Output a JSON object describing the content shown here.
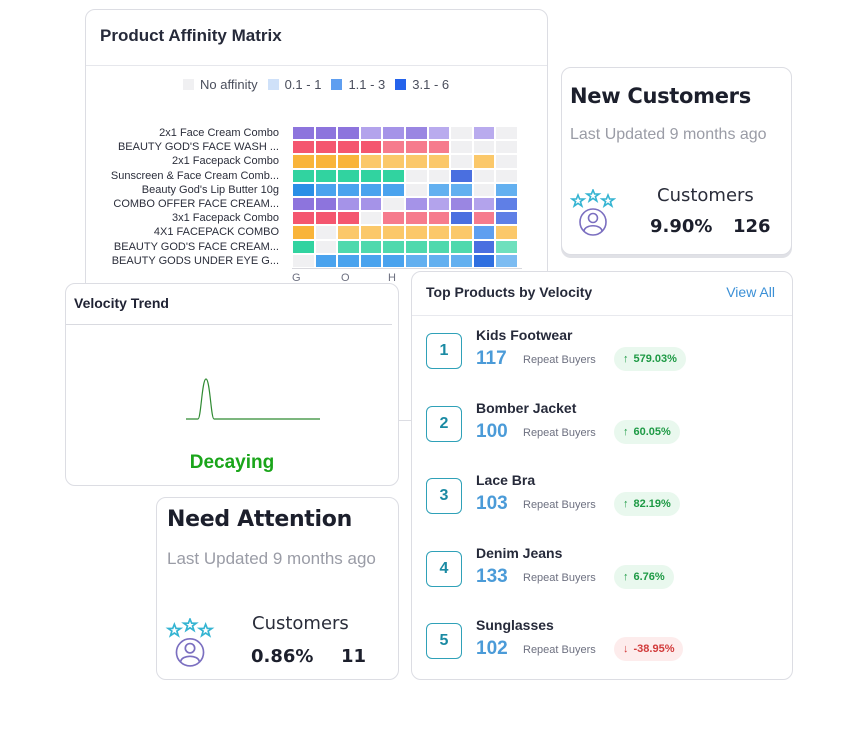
{
  "affinity": {
    "title": "Product Affinity Matrix",
    "legend": [
      {
        "label": "No affinity",
        "color": "#f0f0f2"
      },
      {
        "label": "0.1 - 1",
        "color": "#cfe1f9"
      },
      {
        "label": "1.1 - 3",
        "color": "#5e9ef0"
      },
      {
        "label": "3.1 - 6",
        "color": "#2563eb"
      }
    ],
    "rows": [
      "2x1 Face Cream Combo",
      "BEAUTY GOD'S FACE WASH ...",
      "2x1 Facepack Combo",
      "Sunscreen & Face Cream Comb...",
      "Beauty God's Lip Butter 10g",
      "COMBO OFFER FACE CREAM...",
      "3x1 Facepack Combo",
      "4X1 FACEPACK COMBO",
      "BEAUTY GOD'S FACE CREAM...",
      "BEAUTY GODS UNDER EYE G..."
    ],
    "x_ticks": [
      "G",
      "O",
      "H"
    ],
    "row_colors": [
      [
        "#8d74dd",
        "#8d74dd",
        "#8d74dd",
        "#b3a3ec",
        "#a593e8",
        "#9a86e2",
        "#b9abee",
        "#f0f0f2",
        "#b9abee",
        "#f0f0f2"
      ],
      [
        "#f4566f",
        "#f4566f",
        "#f4566f",
        "#f4566f",
        "#f67b8d",
        "#f67b8d",
        "#f67b8d",
        "#f0f0f2",
        "#f0f0f2",
        "#f0f0f2"
      ],
      [
        "#f9b43a",
        "#f9b43a",
        "#f9b43a",
        "#fbc86a",
        "#fbc86a",
        "#fbc86a",
        "#fbc86a",
        "#f0f0f2",
        "#fbc86a",
        "#f0f0f2"
      ],
      [
        "#31d3a0",
        "#31d3a0",
        "#31d3a0",
        "#31d3a0",
        "#31d3a0",
        "#f0f0f2",
        "#f0f0f2",
        "#4a6fe0",
        "#f0f0f2",
        "#f0f0f2"
      ],
      [
        "#2a8fe6",
        "#4aa3ee",
        "#4aa3ee",
        "#4aa3ee",
        "#4aa3ee",
        "#f0f0f2",
        "#63b0f0",
        "#63b0f0",
        "#f0f0f2",
        "#63b0f0"
      ],
      [
        "#8d74dd",
        "#8d74dd",
        "#a593e8",
        "#a593e8",
        "#f0f0f2",
        "#a593e8",
        "#b3a3ec",
        "#9a86e2",
        "#b3a3ec",
        "#5f7fe6"
      ],
      [
        "#f4566f",
        "#f4566f",
        "#f4566f",
        "#f0f0f2",
        "#f67b8d",
        "#f67b8d",
        "#f67b8d",
        "#4a6fe0",
        "#f67b8d",
        "#5f7fe6"
      ],
      [
        "#f9b43a",
        "#f0f0f2",
        "#fbc86a",
        "#fbc86a",
        "#fbc86a",
        "#fbc86a",
        "#fbc86a",
        "#fbc86a",
        "#5f9ff0",
        "#fbc86a"
      ],
      [
        "#31d3a0",
        "#f0f0f2",
        "#4fd9ad",
        "#4fd9ad",
        "#4fd9ad",
        "#4fd9ad",
        "#4fd9ad",
        "#4fd9ad",
        "#4a6fe0",
        "#6ee0bd"
      ],
      [
        "#f0f0f2",
        "#4aa3ee",
        "#4aa3ee",
        "#4aa3ee",
        "#4aa3ee",
        "#63b0f0",
        "#63b0f0",
        "#63b0f0",
        "#2f6fe0",
        "#7cbcf2"
      ]
    ]
  },
  "new_customers": {
    "title": "New Customers",
    "updated": "Last Updated 9 months ago",
    "label": "Customers",
    "percent": "9.90%",
    "count": "126"
  },
  "velocity": {
    "title": "Velocity Trend",
    "status": "Decaying",
    "status_color": "#1aa51a"
  },
  "need_attention": {
    "title": "Need Attention",
    "updated": "Last Updated 9 months ago",
    "label": "Customers",
    "percent": "0.86%",
    "count": "11"
  },
  "top_products": {
    "title": "Top Products by Velocity",
    "view_all": "View All",
    "repeat_label": "Repeat Buyers",
    "items": [
      {
        "rank": "1",
        "name": "Kids Footwear",
        "count": "117",
        "change": "579.03%",
        "direction": "up"
      },
      {
        "rank": "2",
        "name": "Bomber Jacket",
        "count": "100",
        "change": "60.05%",
        "direction": "up"
      },
      {
        "rank": "3",
        "name": "Lace Bra",
        "count": "103",
        "change": "82.19%",
        "direction": "up"
      },
      {
        "rank": "4",
        "name": "Denim Jeans",
        "count": "133",
        "change": "6.76%",
        "direction": "up"
      },
      {
        "rank": "5",
        "name": "Sunglasses",
        "count": "102",
        "change": "-38.95%",
        "direction": "down"
      }
    ]
  }
}
